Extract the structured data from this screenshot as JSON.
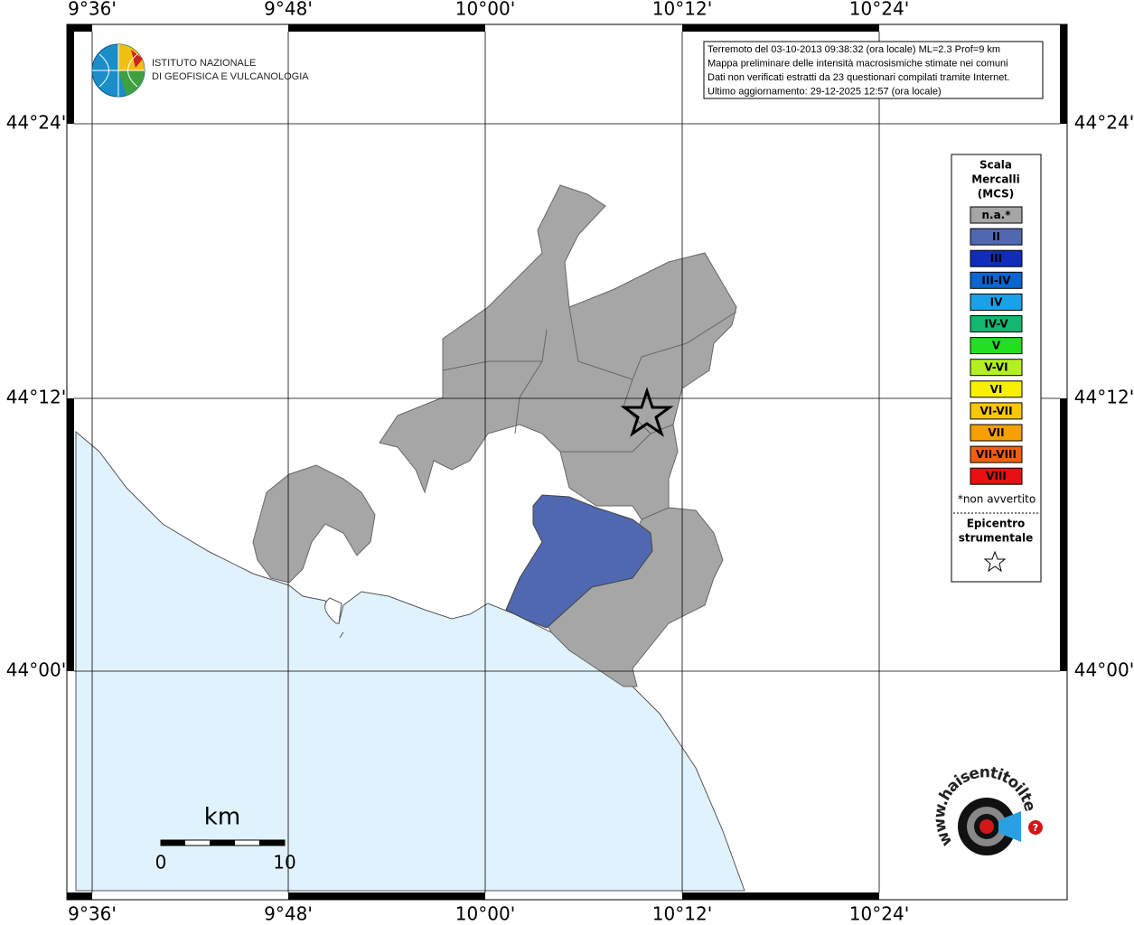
{
  "graticule": {
    "longitudes": [
      "9°36'",
      "9°48'",
      "10°00'",
      "10°12'",
      "10°24'"
    ],
    "latitudes": [
      "44°24'",
      "44°12'",
      "44°00'"
    ]
  },
  "logo": {
    "lines": [
      "ISTITUTO NAZIONALE",
      "DI GEOFISICA E VULCANOLOGIA"
    ]
  },
  "info": {
    "lines": [
      "Terremoto del 03-10-2013 09:38:32 (ora locale) ML=2.3 Prof=9 km",
      "Mappa preliminare delle intensità macrosismiche stimate nei comuni",
      "Dati non verificati estratti da 23 questionari compilati tramite Internet.",
      "Ultimo aggiornamento: 29-12-2025 12:57 (ora locale)"
    ]
  },
  "legend": {
    "title": [
      "Scala",
      "Mercalli",
      "(MCS)"
    ],
    "items": [
      {
        "label": "n.a.*",
        "color": "#a6a6a6"
      },
      {
        "label": "II",
        "color": "#5068b0"
      },
      {
        "label": "III",
        "color": "#102cb8"
      },
      {
        "label": "III-IV",
        "color": "#0a66d0"
      },
      {
        "label": "IV",
        "color": "#1aa2e8"
      },
      {
        "label": "IV-V",
        "color": "#12b870"
      },
      {
        "label": "V",
        "color": "#20e020"
      },
      {
        "label": "V-VI",
        "color": "#b4f020"
      },
      {
        "label": "VI",
        "color": "#f8f000"
      },
      {
        "label": "VI-VII",
        "color": "#f8c800"
      },
      {
        "label": "VII",
        "color": "#f8a000"
      },
      {
        "label": "VII-VIII",
        "color": "#f06010"
      },
      {
        "label": "VIII",
        "color": "#e81010"
      }
    ],
    "note": "*non avvertito",
    "epicenter": [
      "Epicentro",
      "strumentale"
    ]
  },
  "scale_bar": {
    "unit": "km",
    "labels": [
      "0",
      "10"
    ]
  },
  "badge": {
    "url": "www.haisentitoilterremoto.it",
    "help": "?"
  }
}
